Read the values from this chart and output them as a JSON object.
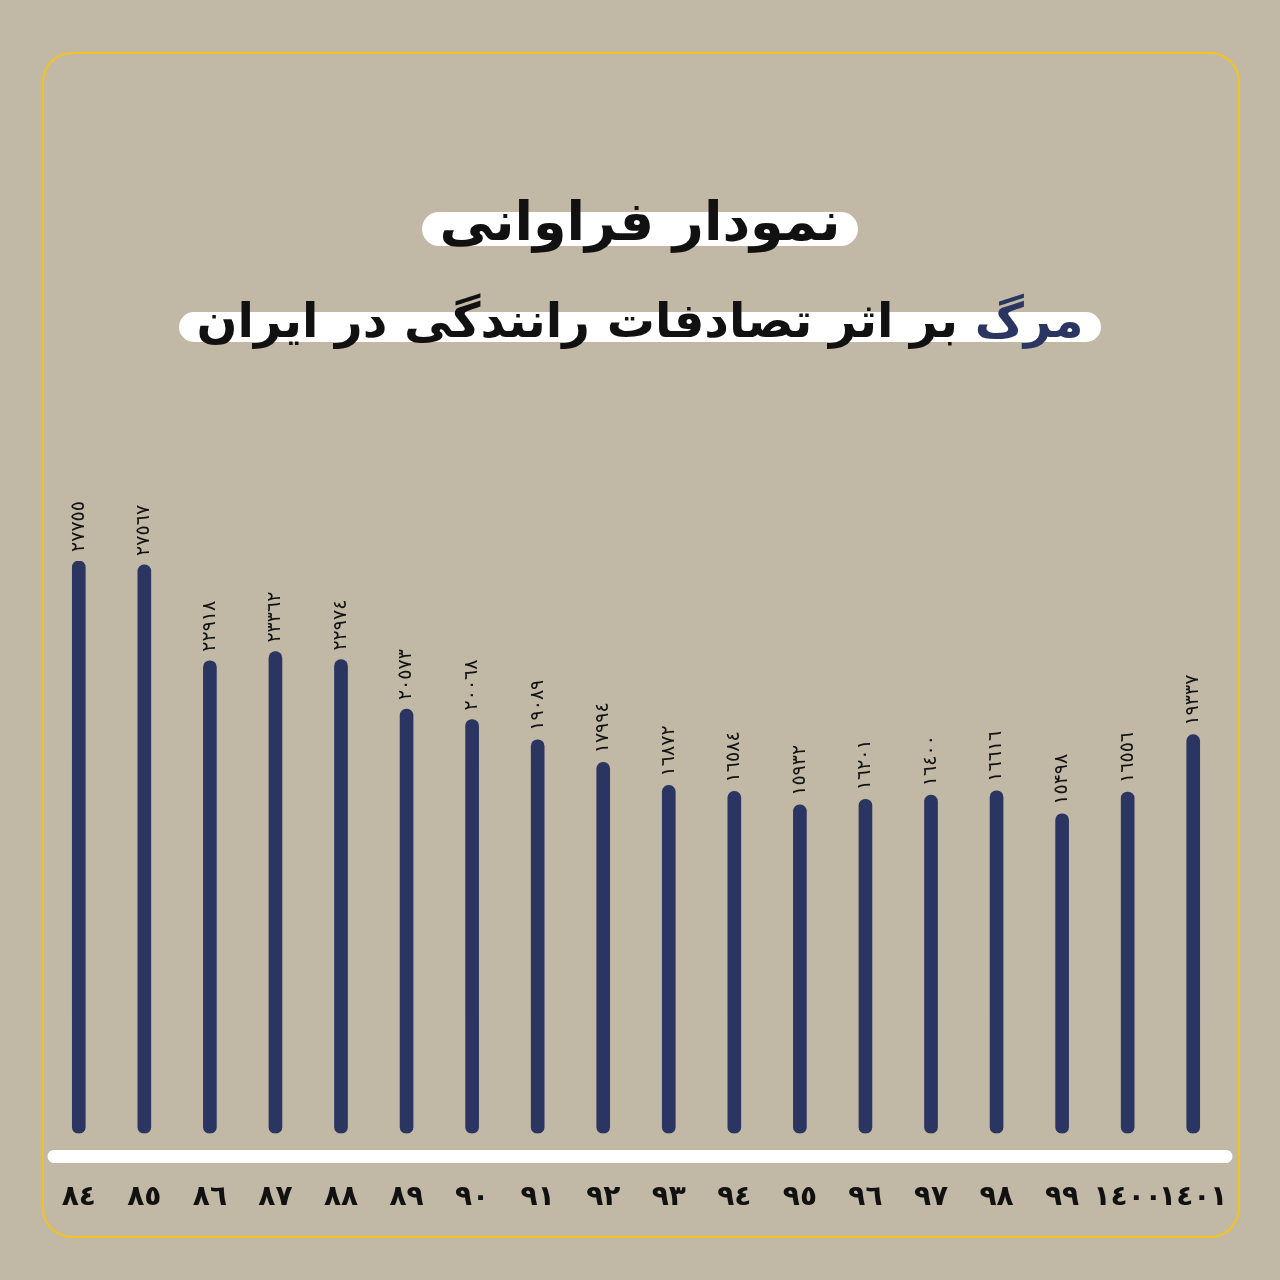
{
  "chart_data": {
    "type": "bar",
    "title": "نمودار فراوانی",
    "subtitle": "مرگ بر اثر تصادفات رانندگی در ایران",
    "categories": [
      "٨٤",
      "٨٥",
      "٨٦",
      "٨٧",
      "٨٨",
      "٨٩",
      "٩٠",
      "٩١",
      "٩٢",
      "٩٣",
      "٩٤",
      "٩٥",
      "٩٦",
      "٩٧",
      "٩٨",
      "٩٩",
      "١٤٠٠",
      "١٤٠١"
    ],
    "values": [
      27755,
      27567,
      22918,
      23362,
      22974,
      20573,
      20068,
      19089,
      17994,
      16872,
      16584,
      15932,
      16201,
      16400,
      16616,
      15498,
      16556,
      19337
    ],
    "value_labels": [
      "٢٧٧٥٥",
      "٢٧٥٦٧",
      "٢٢٩١٨",
      "٢٣٣٦٢",
      "٢٢٩٧٤",
      "٢٠٥٧٣",
      "٢٠٠٦٨",
      "١٩٠٨٩",
      "١٧٩٩٤",
      "١٦٨٧٢",
      "١٦٥٨٤",
      "١٥٩٣٢",
      "١٦٢٠١",
      "١٦٤٠٠",
      "١٦٦١٦",
      "١٥۴٩٨",
      "١٦٥٥٦",
      "١٩٣٣٧"
    ],
    "color": "#2b3561"
  }
}
